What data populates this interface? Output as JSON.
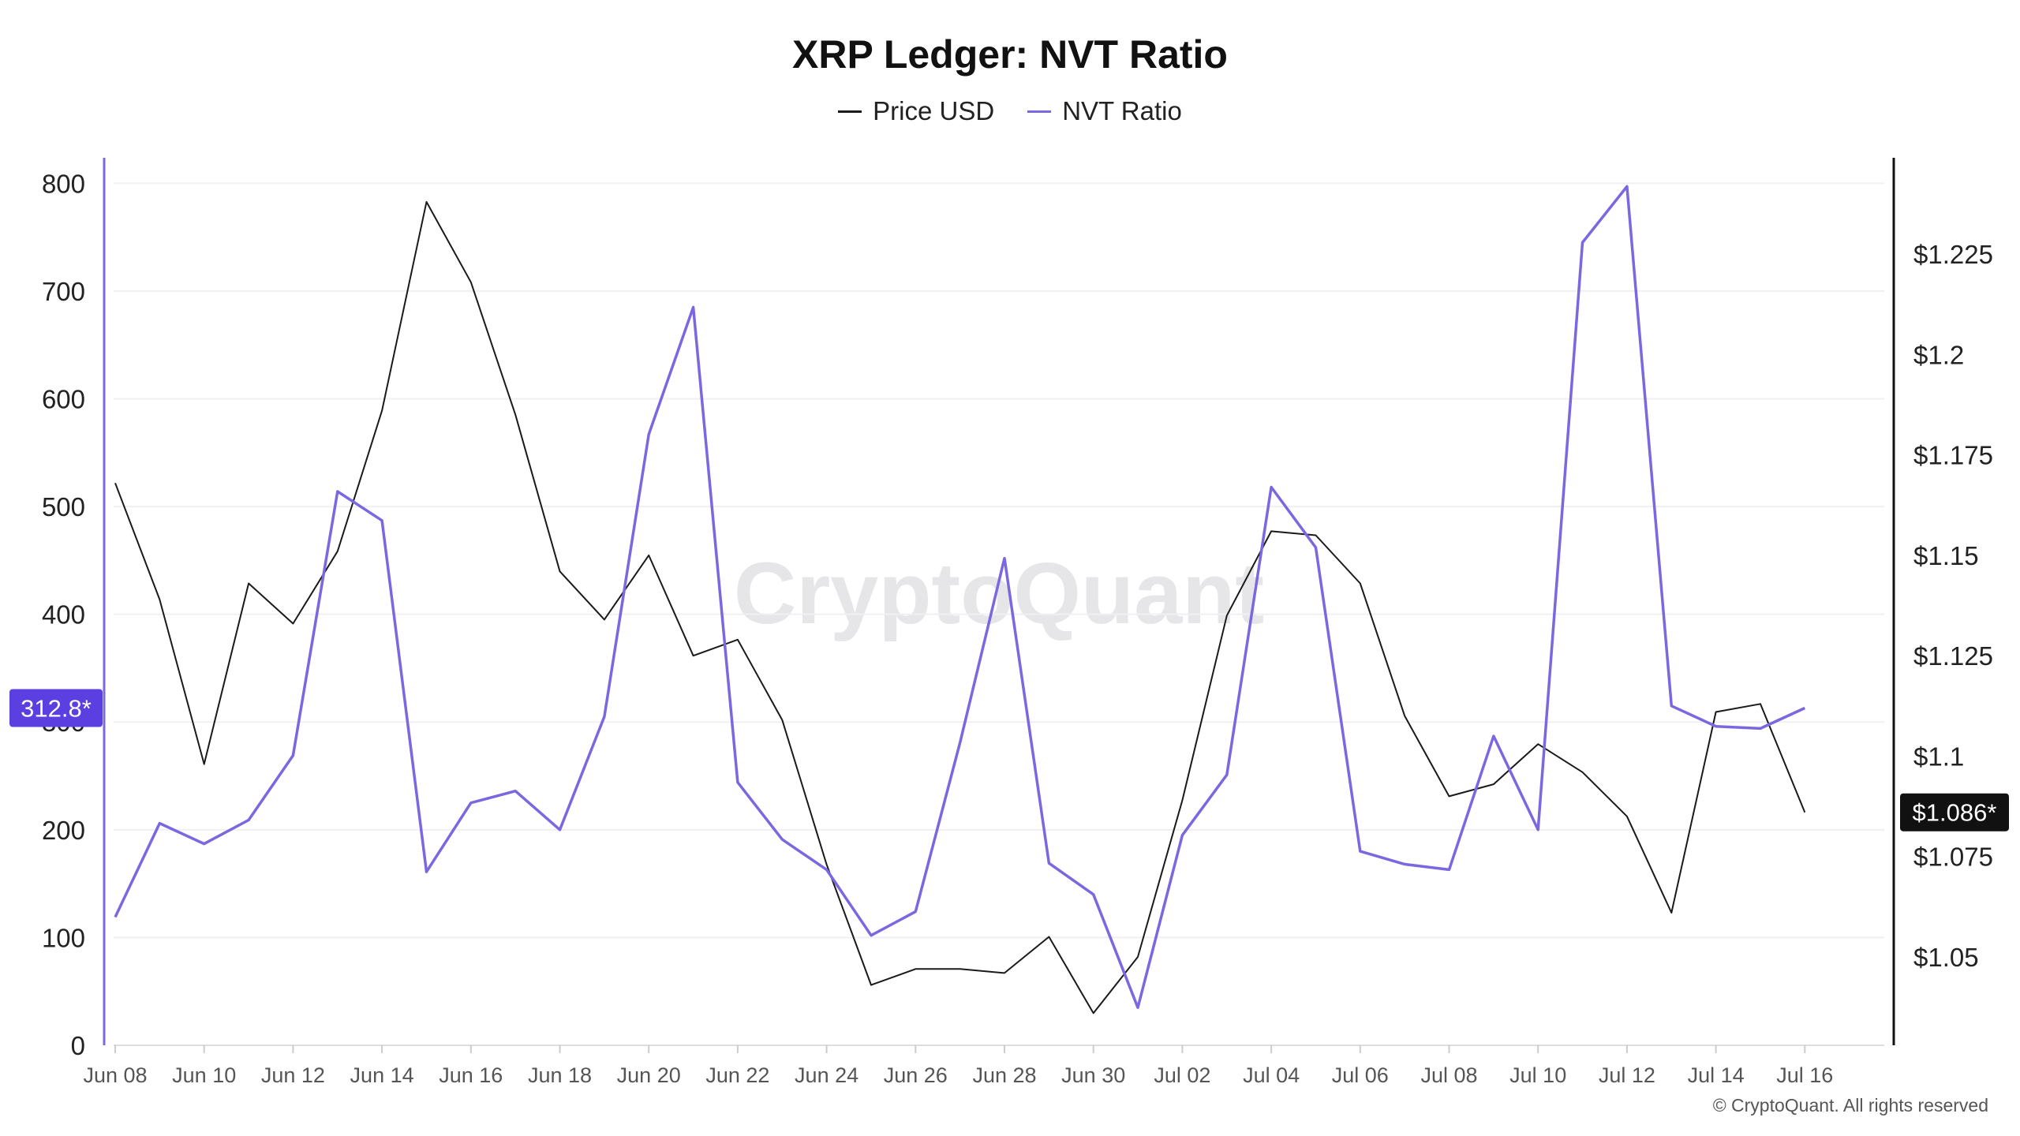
{
  "chart_data": {
    "type": "line",
    "title": "XRP Ledger: NVT Ratio",
    "x": [
      "Jun 08",
      "Jun 09",
      "Jun 10",
      "Jun 11",
      "Jun 12",
      "Jun 13",
      "Jun 14",
      "Jun 15",
      "Jun 16",
      "Jun 17",
      "Jun 18",
      "Jun 19",
      "Jun 20",
      "Jun 21",
      "Jun 22",
      "Jun 23",
      "Jun 24",
      "Jun 25",
      "Jun 26",
      "Jun 27",
      "Jun 28",
      "Jun 29",
      "Jun 30",
      "Jul 01",
      "Jul 02",
      "Jul 03",
      "Jul 04",
      "Jul 05",
      "Jul 06",
      "Jul 07",
      "Jul 08",
      "Jul 09",
      "Jul 10",
      "Jul 11",
      "Jul 12",
      "Jul 13",
      "Jul 14",
      "Jul 15",
      "Jul 16"
    ],
    "x_tick_labels": [
      "Jun 08",
      "Jun 10",
      "Jun 12",
      "Jun 14",
      "Jun 16",
      "Jun 18",
      "Jun 20",
      "Jun 22",
      "Jun 24",
      "Jun 26",
      "Jun 28",
      "Jun 30",
      "Jul 02",
      "Jul 04",
      "Jul 06",
      "Jul 08",
      "Jul 10",
      "Jul 12",
      "Jul 14",
      "Jul 16"
    ],
    "series": [
      {
        "name": "Price USD",
        "axis": "right",
        "color": "#1a1a1a",
        "values": [
          1.168,
          1.139,
          1.098,
          1.143,
          1.133,
          1.151,
          1.186,
          1.238,
          1.218,
          1.185,
          1.146,
          1.134,
          1.15,
          1.125,
          1.129,
          1.109,
          1.073,
          1.043,
          1.047,
          1.047,
          1.046,
          1.055,
          1.036,
          1.05,
          1.089,
          1.135,
          1.156,
          1.155,
          1.143,
          1.11,
          1.09,
          1.093,
          1.103,
          1.096,
          1.085,
          1.061,
          1.111,
          1.113,
          1.086
        ]
      },
      {
        "name": "NVT Ratio",
        "axis": "left",
        "color": "#7b68e0",
        "values": [
          119,
          206,
          187,
          209,
          269,
          514,
          487,
          161,
          225,
          236,
          200,
          305,
          567,
          685,
          244,
          191,
          163,
          102,
          124,
          281,
          452,
          169,
          140,
          35,
          195,
          251,
          518,
          462,
          180,
          168,
          163,
          287,
          200,
          745,
          797,
          315,
          296,
          294,
          313
        ]
      }
    ],
    "left_axis": {
      "ticks": [
        "0",
        "100",
        "200",
        "300",
        "400",
        "500",
        "600",
        "700",
        "800"
      ],
      "range": [
        0,
        820
      ]
    },
    "right_axis": {
      "ticks": [
        "$1.05",
        "$1.075",
        "$1.1",
        "$1.125",
        "$1.15",
        "$1.175",
        "$1.2",
        "$1.225"
      ],
      "range": [
        1.028,
        1.248
      ]
    },
    "last_value_labels": {
      "left": "312.8*",
      "right": "$1.086*"
    },
    "watermark": "CryptoQuant",
    "grid": true,
    "legend_position": "top-center"
  },
  "footer": {
    "copyright": "© CryptoQuant. All rights reserved"
  },
  "colors": {
    "nvt": "#7b68e0",
    "price": "#1a1a1a",
    "left_badge": "#5b3fe0",
    "right_badge": "#111111"
  }
}
